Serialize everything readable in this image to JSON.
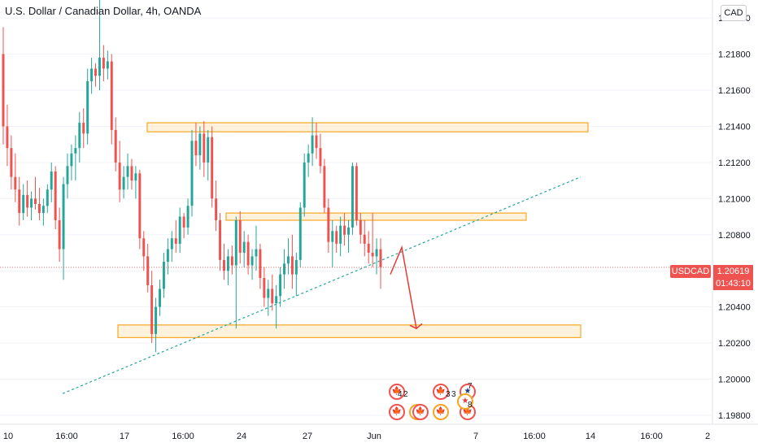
{
  "header": {
    "title": "U.S. Dollar / Canadian Dollar, 4h, OANDA",
    "currency_button": "CAD"
  },
  "price_tag": {
    "symbol": "USDCAD",
    "price": "1.20619",
    "countdown": "01:43:10",
    "color": "#ef5350"
  },
  "colors": {
    "up": "#26a69a",
    "down": "#ef5350",
    "zone_fill": "#fde9c4",
    "zone_stroke": "#f7a823",
    "trendline": "#26a69a",
    "arrow": "#e53935"
  },
  "events": {
    "icons": [
      {
        "kind": "ca",
        "glyph": "🍁"
      },
      {
        "kind": "ca",
        "glyph": "🍁"
      },
      {
        "kind": "or",
        "glyph": "🍁"
      },
      {
        "kind": "ca",
        "glyph": "🍁"
      },
      {
        "kind": "or",
        "glyph": "🍁"
      },
      {
        "kind": "us",
        "glyph": "★"
      },
      {
        "kind": "ca",
        "glyph": "🍁"
      },
      {
        "kind": "or",
        "glyph": "★"
      },
      {
        "kind": "ca",
        "glyph": "🍁"
      }
    ],
    "counts": [
      "4",
      "2",
      "3",
      "3",
      "7",
      "8"
    ]
  },
  "chart_data": {
    "type": "candlestick",
    "symbol": "USDCAD",
    "timeframe": "4h",
    "y_ticks": [
      "1.22000",
      "1.21800",
      "1.21600",
      "1.21400",
      "1.21200",
      "1.21000",
      "1.20800",
      "1.20600",
      "1.20400",
      "1.20200",
      "1.20000",
      "1.19800"
    ],
    "x_ticks": [
      "10",
      "16:00",
      "17",
      "16:00",
      "24",
      "16:00",
      "27",
      "Jun",
      "7",
      "16:00",
      "14",
      "16:00",
      "2"
    ],
    "ylim": [
      1.1975,
      1.221
    ],
    "last_price": 1.20619,
    "zones": [
      {
        "from": 1.2137,
        "to": 1.2142
      },
      {
        "from": 1.2088,
        "to": 1.2092
      },
      {
        "from": 1.2023,
        "to": 1.203
      }
    ],
    "trendline": {
      "start": 1.1992,
      "end": 1.2112
    },
    "projection": [
      1.2058,
      1.2073,
      1.2028
    ],
    "candles": [
      [
        1.218,
        1.2195,
        1.213,
        1.214
      ],
      [
        1.214,
        1.2152,
        1.2118,
        1.2128
      ],
      [
        1.2128,
        1.2135,
        1.2105,
        1.2112
      ],
      [
        1.2112,
        1.2125,
        1.2098,
        1.2105
      ],
      [
        1.2105,
        1.2112,
        1.2085,
        1.2092
      ],
      [
        1.2092,
        1.2108,
        1.2088,
        1.2102
      ],
      [
        1.2102,
        1.211,
        1.209,
        1.2095
      ],
      [
        1.2095,
        1.2104,
        1.2088,
        1.21
      ],
      [
        1.21,
        1.2112,
        1.2094,
        1.2097
      ],
      [
        1.2097,
        1.2106,
        1.2088,
        1.2092
      ],
      [
        1.2092,
        1.21,
        1.2085,
        1.2096
      ],
      [
        1.2096,
        1.2108,
        1.2092,
        1.2105
      ],
      [
        1.2105,
        1.212,
        1.2098,
        1.2115
      ],
      [
        1.2115,
        1.2118,
        1.2083,
        1.2088
      ],
      [
        1.2088,
        1.2095,
        1.2065,
        1.2072
      ],
      [
        1.2072,
        1.2112,
        1.2055,
        1.2108
      ],
      [
        1.2108,
        1.2125,
        1.21,
        1.2118
      ],
      [
        1.2118,
        1.213,
        1.211,
        1.2125
      ],
      [
        1.2125,
        1.2135,
        1.211,
        1.2128
      ],
      [
        1.2128,
        1.2148,
        1.212,
        1.2142
      ],
      [
        1.2142,
        1.215,
        1.2128,
        1.2136
      ],
      [
        1.2136,
        1.2172,
        1.213,
        1.2165
      ],
      [
        1.2165,
        1.2178,
        1.2158,
        1.2172
      ],
      [
        1.2172,
        1.2175,
        1.2162,
        1.2168
      ],
      [
        1.2168,
        1.2212,
        1.216,
        1.2178
      ],
      [
        1.2178,
        1.2185,
        1.2165,
        1.2172
      ],
      [
        1.2172,
        1.2182,
        1.2166,
        1.2176
      ],
      [
        1.2176,
        1.218,
        1.213,
        1.2138
      ],
      [
        1.2138,
        1.2145,
        1.2115,
        1.212
      ],
      [
        1.212,
        1.2132,
        1.2098,
        1.2105
      ],
      [
        1.2105,
        1.2118,
        1.21,
        1.2112
      ],
      [
        1.2112,
        1.2125,
        1.2105,
        1.2118
      ],
      [
        1.2118,
        1.2122,
        1.2105,
        1.211
      ],
      [
        1.211,
        1.2118,
        1.21,
        1.2114
      ],
      [
        1.2114,
        1.2116,
        1.2072,
        1.2078
      ],
      [
        1.2078,
        1.2082,
        1.206,
        1.2068
      ],
      [
        1.2068,
        1.2075,
        1.2048,
        1.2052
      ],
      [
        1.2052,
        1.206,
        1.202,
        1.2025
      ],
      [
        1.2025,
        1.2045,
        1.2015,
        1.204
      ],
      [
        1.204,
        1.2055,
        1.2035,
        1.205
      ],
      [
        1.205,
        1.207,
        1.2045,
        1.2065
      ],
      [
        1.2065,
        1.2078,
        1.2058,
        1.2072
      ],
      [
        1.2072,
        1.2082,
        1.2065,
        1.2078
      ],
      [
        1.2078,
        1.2088,
        1.207,
        1.2075
      ],
      [
        1.2075,
        1.2095,
        1.207,
        1.209
      ],
      [
        1.209,
        1.2092,
        1.2078,
        1.2084
      ],
      [
        1.2084,
        1.21,
        1.208,
        1.2096
      ],
      [
        1.2096,
        1.2138,
        1.209,
        1.2132
      ],
      [
        1.2132,
        1.2142,
        1.2118,
        1.2124
      ],
      [
        1.2124,
        1.214,
        1.2116,
        1.2136
      ],
      [
        1.2136,
        1.2143,
        1.2112,
        1.212
      ],
      [
        1.212,
        1.2138,
        1.211,
        1.2134
      ],
      [
        1.2134,
        1.214,
        1.2095,
        1.21
      ],
      [
        1.21,
        1.211,
        1.2082,
        1.2088
      ],
      [
        1.2088,
        1.2092,
        1.206,
        1.2066
      ],
      [
        1.2066,
        1.2075,
        1.2055,
        1.206
      ],
      [
        1.206,
        1.2072,
        1.2052,
        1.2068
      ],
      [
        1.2068,
        1.2074,
        1.2058,
        1.2063
      ],
      [
        1.2063,
        1.209,
        1.2028,
        1.2088
      ],
      [
        1.2088,
        1.2093,
        1.2064,
        1.207
      ],
      [
        1.207,
        1.2082,
        1.2062,
        1.2076
      ],
      [
        1.2076,
        1.208,
        1.2058,
        1.2063
      ],
      [
        1.2063,
        1.2072,
        1.2055,
        1.2068
      ],
      [
        1.2068,
        1.2085,
        1.206,
        1.2072
      ],
      [
        1.2072,
        1.2075,
        1.205,
        1.2056
      ],
      [
        1.2056,
        1.2062,
        1.204,
        1.2045
      ],
      [
        1.2045,
        1.2055,
        1.2035,
        1.205
      ],
      [
        1.205,
        1.2058,
        1.2038,
        1.2042
      ],
      [
        1.2042,
        1.2052,
        1.2028,
        1.2046
      ],
      [
        1.2046,
        1.2062,
        1.204,
        1.2058
      ],
      [
        1.2058,
        1.2072,
        1.205,
        1.2064
      ],
      [
        1.2064,
        1.2078,
        1.2058,
        1.2068
      ],
      [
        1.2068,
        1.208,
        1.205,
        1.2058
      ],
      [
        1.2058,
        1.207,
        1.2046,
        1.2066
      ],
      [
        1.2066,
        1.2098,
        1.2062,
        1.2095
      ],
      [
        1.2095,
        1.2125,
        1.209,
        1.212
      ],
      [
        1.212,
        1.213,
        1.2112,
        1.2125
      ],
      [
        1.2125,
        1.2145,
        1.2118,
        1.2135
      ],
      [
        1.2135,
        1.2142,
        1.2122,
        1.2128
      ],
      [
        1.2128,
        1.2136,
        1.2114,
        1.2118
      ],
      [
        1.2118,
        1.2122,
        1.2092,
        1.2095
      ],
      [
        1.2095,
        1.21,
        1.207,
        1.2076
      ],
      [
        1.2076,
        1.2088,
        1.2062,
        1.2082
      ],
      [
        1.2082,
        1.2085,
        1.207,
        1.2075
      ],
      [
        1.2075,
        1.209,
        1.2068,
        1.2085
      ],
      [
        1.2085,
        1.2092,
        1.2074,
        1.208
      ],
      [
        1.208,
        1.2088,
        1.207,
        1.2084
      ],
      [
        1.2084,
        1.212,
        1.208,
        1.2118
      ],
      [
        1.2118,
        1.212,
        1.2085,
        1.2088
      ],
      [
        1.2088,
        1.2092,
        1.2075,
        1.208
      ],
      [
        1.208,
        1.2088,
        1.2068,
        1.2075
      ],
      [
        1.2075,
        1.2082,
        1.2064,
        1.207
      ],
      [
        1.207,
        1.2092,
        1.2062,
        1.2068
      ],
      [
        1.2068,
        1.2078,
        1.2058,
        1.2072
      ],
      [
        1.2072,
        1.2078,
        1.205,
        1.2062
      ]
    ]
  }
}
